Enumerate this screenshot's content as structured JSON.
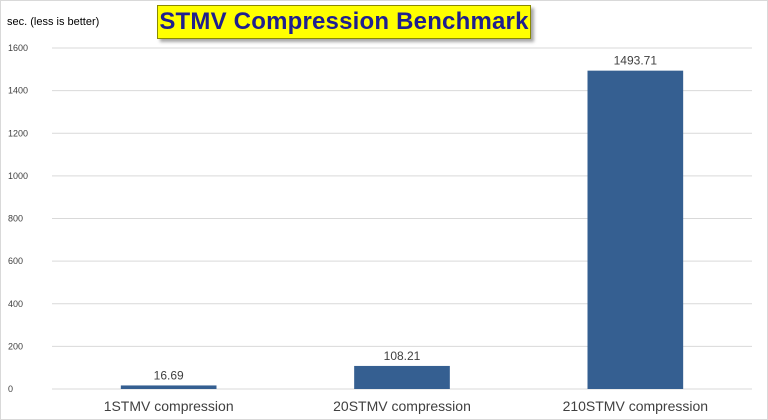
{
  "chart_data": {
    "type": "bar",
    "title": "STMV Compression Benchmark",
    "ylabel": "sec. (less is better)",
    "xlabel": "",
    "categories": [
      "1STMV compression",
      "20STMV compression",
      "210STMV compression"
    ],
    "values": [
      16.69,
      108.21,
      1493.71
    ],
    "data_labels": [
      "16.69",
      "108.21",
      "1493.71"
    ],
    "ylim": [
      0,
      1600
    ],
    "yticks": [
      0,
      200,
      400,
      600,
      800,
      1000,
      1200,
      1400,
      1600
    ],
    "grid": true,
    "legend": "none",
    "bar_color": "#355f91",
    "title_background": "#ffff00",
    "title_color": "#1f1f8f"
  }
}
